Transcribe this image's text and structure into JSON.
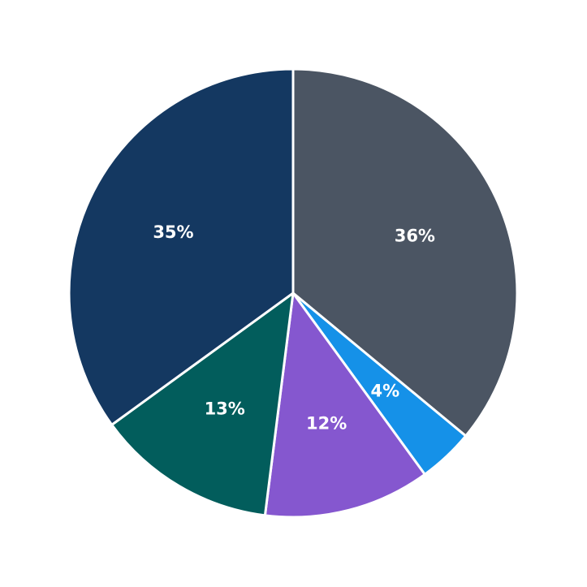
{
  "chart_data": {
    "type": "pie",
    "title": "",
    "start_angle_deg_clockwise_from_top": 0,
    "direction": "clockwise",
    "legend": null,
    "slices": [
      {
        "label": "36%",
        "value": 36,
        "color": "#4b5563"
      },
      {
        "label": "4%",
        "value": 4,
        "color": "#1591e8"
      },
      {
        "label": "12%",
        "value": 12,
        "color": "#8557cf"
      },
      {
        "label": "13%",
        "value": 13,
        "color": "#025d5c"
      },
      {
        "label": "35%",
        "value": 35,
        "color": "#143861"
      }
    ],
    "center": [
      361,
      361
    ],
    "radius": 276,
    "label_radius_fraction": 0.6,
    "separator_color": "#ffffff"
  }
}
